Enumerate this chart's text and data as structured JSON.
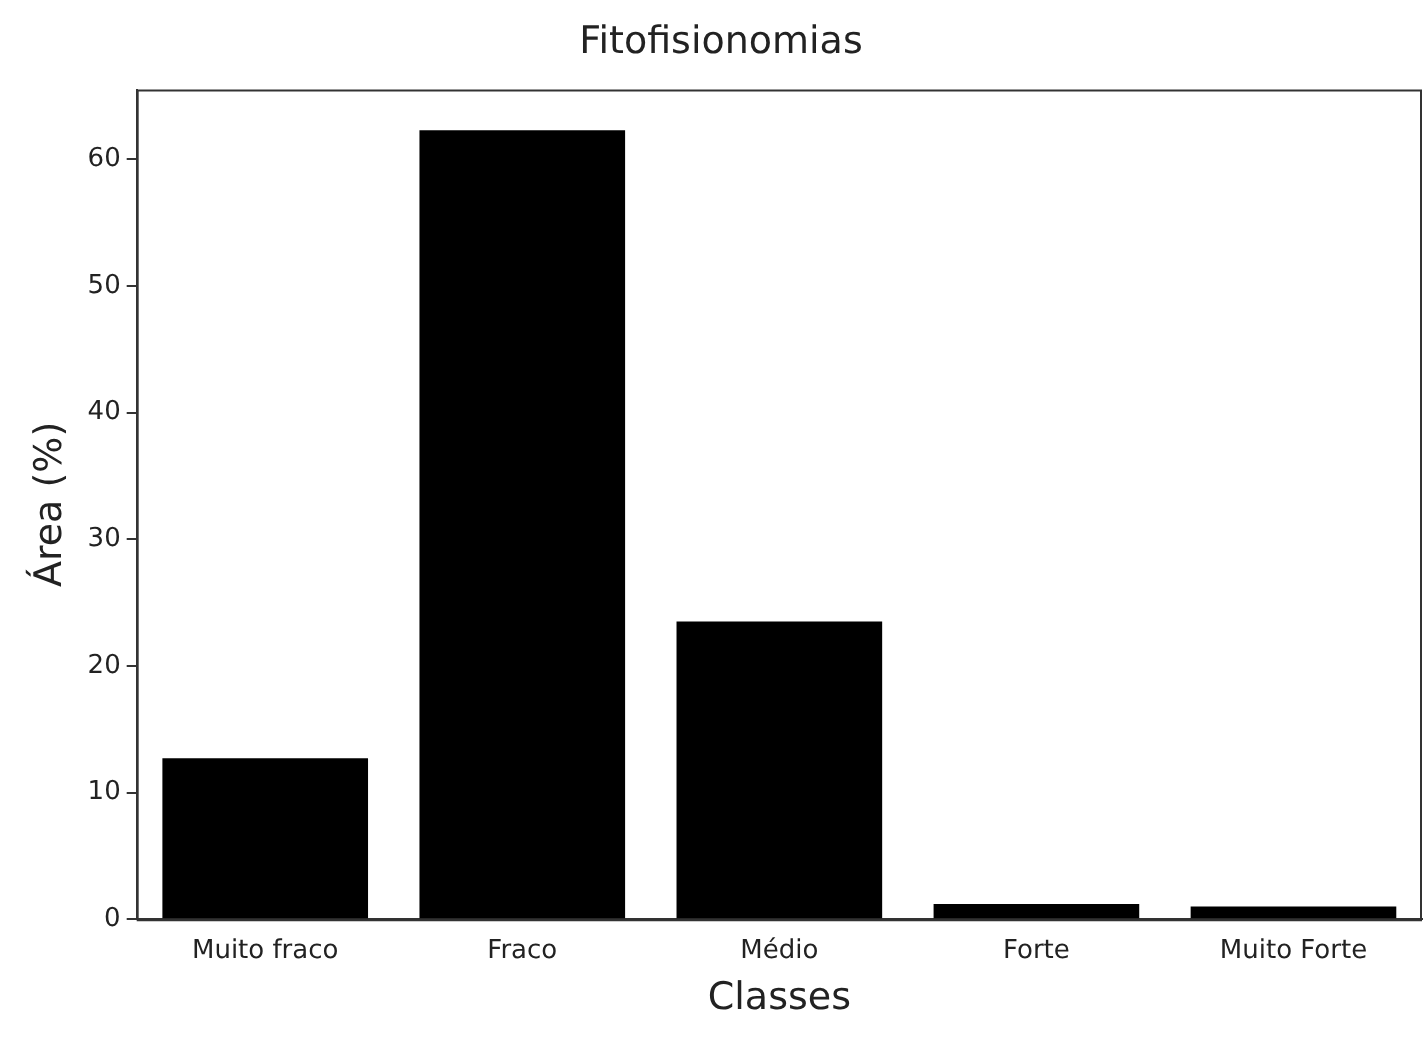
{
  "chart_data": {
    "type": "bar",
    "title": "Fitofisionomias",
    "xlabel": "Classes",
    "ylabel": "Área (%)",
    "categories": [
      "Muito fraco",
      "Fraco",
      "Médio",
      "Forte",
      "Muito Forte"
    ],
    "values": [
      12.7,
      62.3,
      23.5,
      1.2,
      1.0
    ],
    "color": "#000000",
    "ylim": [
      0,
      65.5
    ],
    "yticks": [
      0,
      10,
      20,
      30,
      40,
      50,
      60
    ],
    "grid": false,
    "legend": false
  }
}
